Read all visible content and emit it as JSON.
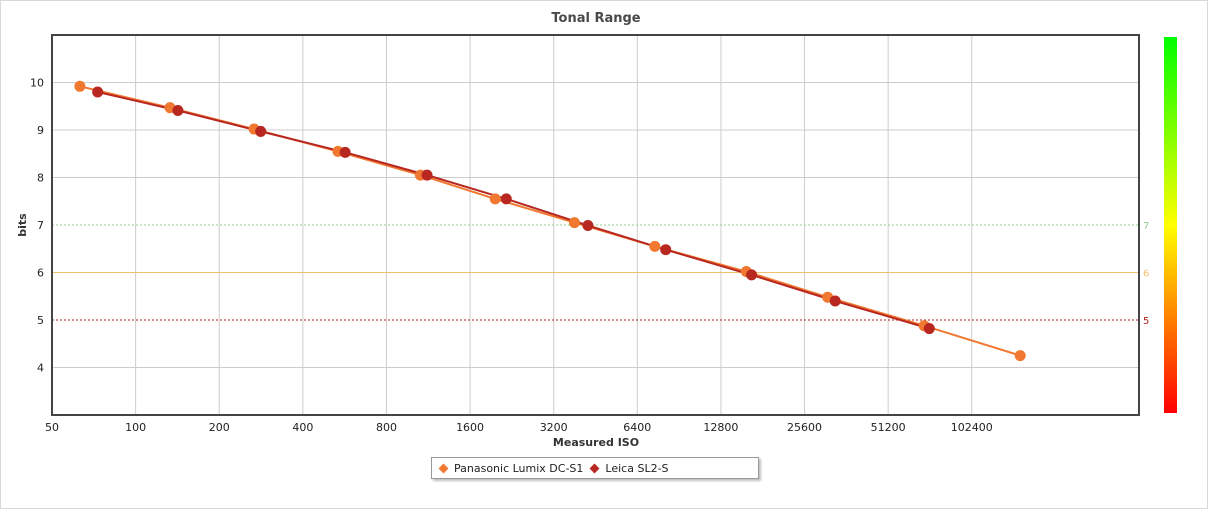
{
  "chart_data": {
    "type": "line",
    "title": "Tonal Range",
    "xlabel": "Measured ISO",
    "ylabel": "bits",
    "x_scale": "log2",
    "xlim": [
      50,
      409600
    ],
    "ylim": [
      3,
      11
    ],
    "x_ticks": [
      50,
      100,
      200,
      400,
      800,
      1600,
      3200,
      6400,
      12800,
      25600,
      51200,
      102400
    ],
    "x_tick_labels": [
      "50",
      "100",
      "200",
      "400",
      "800",
      "1600",
      "3200",
      "6400",
      "12800",
      "25600",
      "51200",
      "102400"
    ],
    "y_ticks": [
      4,
      5,
      6,
      7,
      8,
      9,
      10
    ],
    "y_tick_labels": [
      "4",
      "5",
      "6",
      "7",
      "8",
      "9",
      "10"
    ],
    "grid": true,
    "legend_position": "bottom-center",
    "reference_lines": [
      {
        "value": 7,
        "label": "7",
        "color": "#90d090",
        "style": "dotted"
      },
      {
        "value": 6,
        "label": "6",
        "color": "#f0c070",
        "style": "solid"
      },
      {
        "value": 5,
        "label": "5",
        "color": "#b02020",
        "style": "dotted"
      }
    ],
    "series": [
      {
        "name": "Panasonic Lumix DC-S1",
        "color": "#f07830",
        "points": [
          {
            "x": 63,
            "y": 9.92
          },
          {
            "x": 133,
            "y": 9.47
          },
          {
            "x": 267,
            "y": 9.02
          },
          {
            "x": 535,
            "y": 8.55
          },
          {
            "x": 1060,
            "y": 8.05
          },
          {
            "x": 1970,
            "y": 7.55
          },
          {
            "x": 3800,
            "y": 7.05
          },
          {
            "x": 7400,
            "y": 6.55
          },
          {
            "x": 15800,
            "y": 6.02
          },
          {
            "x": 31000,
            "y": 5.48
          },
          {
            "x": 69000,
            "y": 4.88
          },
          {
            "x": 153000,
            "y": 4.25
          }
        ]
      },
      {
        "name": "Leica SL2-S",
        "color": "#b82820",
        "points": [
          {
            "x": 73,
            "y": 9.8
          },
          {
            "x": 142,
            "y": 9.41
          },
          {
            "x": 282,
            "y": 8.97
          },
          {
            "x": 568,
            "y": 8.53
          },
          {
            "x": 1120,
            "y": 8.05
          },
          {
            "x": 2160,
            "y": 7.55
          },
          {
            "x": 4250,
            "y": 6.99
          },
          {
            "x": 8100,
            "y": 6.48
          },
          {
            "x": 16500,
            "y": 5.95
          },
          {
            "x": 33000,
            "y": 5.4
          },
          {
            "x": 72000,
            "y": 4.82
          }
        ]
      }
    ],
    "color_scale": {
      "colors": [
        "#ff0000",
        "#ffff00",
        "#00ff00"
      ],
      "min": 3,
      "max": 11
    }
  }
}
